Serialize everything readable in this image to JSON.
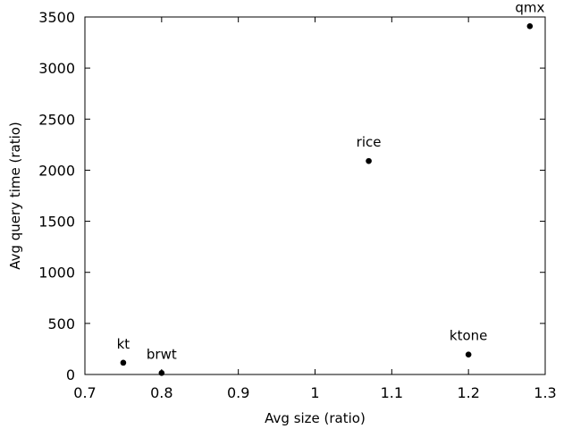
{
  "chart_data": {
    "type": "scatter",
    "xlabel": "Avg size (ratio)",
    "ylabel": "Avg query time (ratio)",
    "xlim": [
      0.7,
      1.3
    ],
    "ylim": [
      0,
      3500
    ],
    "xticks": [
      0.7,
      0.8,
      0.9,
      1.0,
      1.1,
      1.2,
      1.3
    ],
    "xtick_labels": [
      "0.7",
      "0.8",
      "0.9",
      "1",
      "1.1",
      "1.2",
      "1.3"
    ],
    "yticks": [
      0,
      500,
      1000,
      1500,
      2000,
      2500,
      3000,
      3500
    ],
    "ytick_labels": [
      "0",
      "500",
      "1000",
      "1500",
      "2000",
      "2500",
      "3000",
      "3500"
    ],
    "grid": false,
    "points": [
      {
        "label": "kt",
        "x": 0.75,
        "y": 115
      },
      {
        "label": "brwt",
        "x": 0.8,
        "y": 15
      },
      {
        "label": "rice",
        "x": 1.07,
        "y": 2090
      },
      {
        "label": "ktone",
        "x": 1.2,
        "y": 195
      },
      {
        "label": "qmx",
        "x": 1.28,
        "y": 3410
      }
    ],
    "marker_color": "#000000"
  }
}
